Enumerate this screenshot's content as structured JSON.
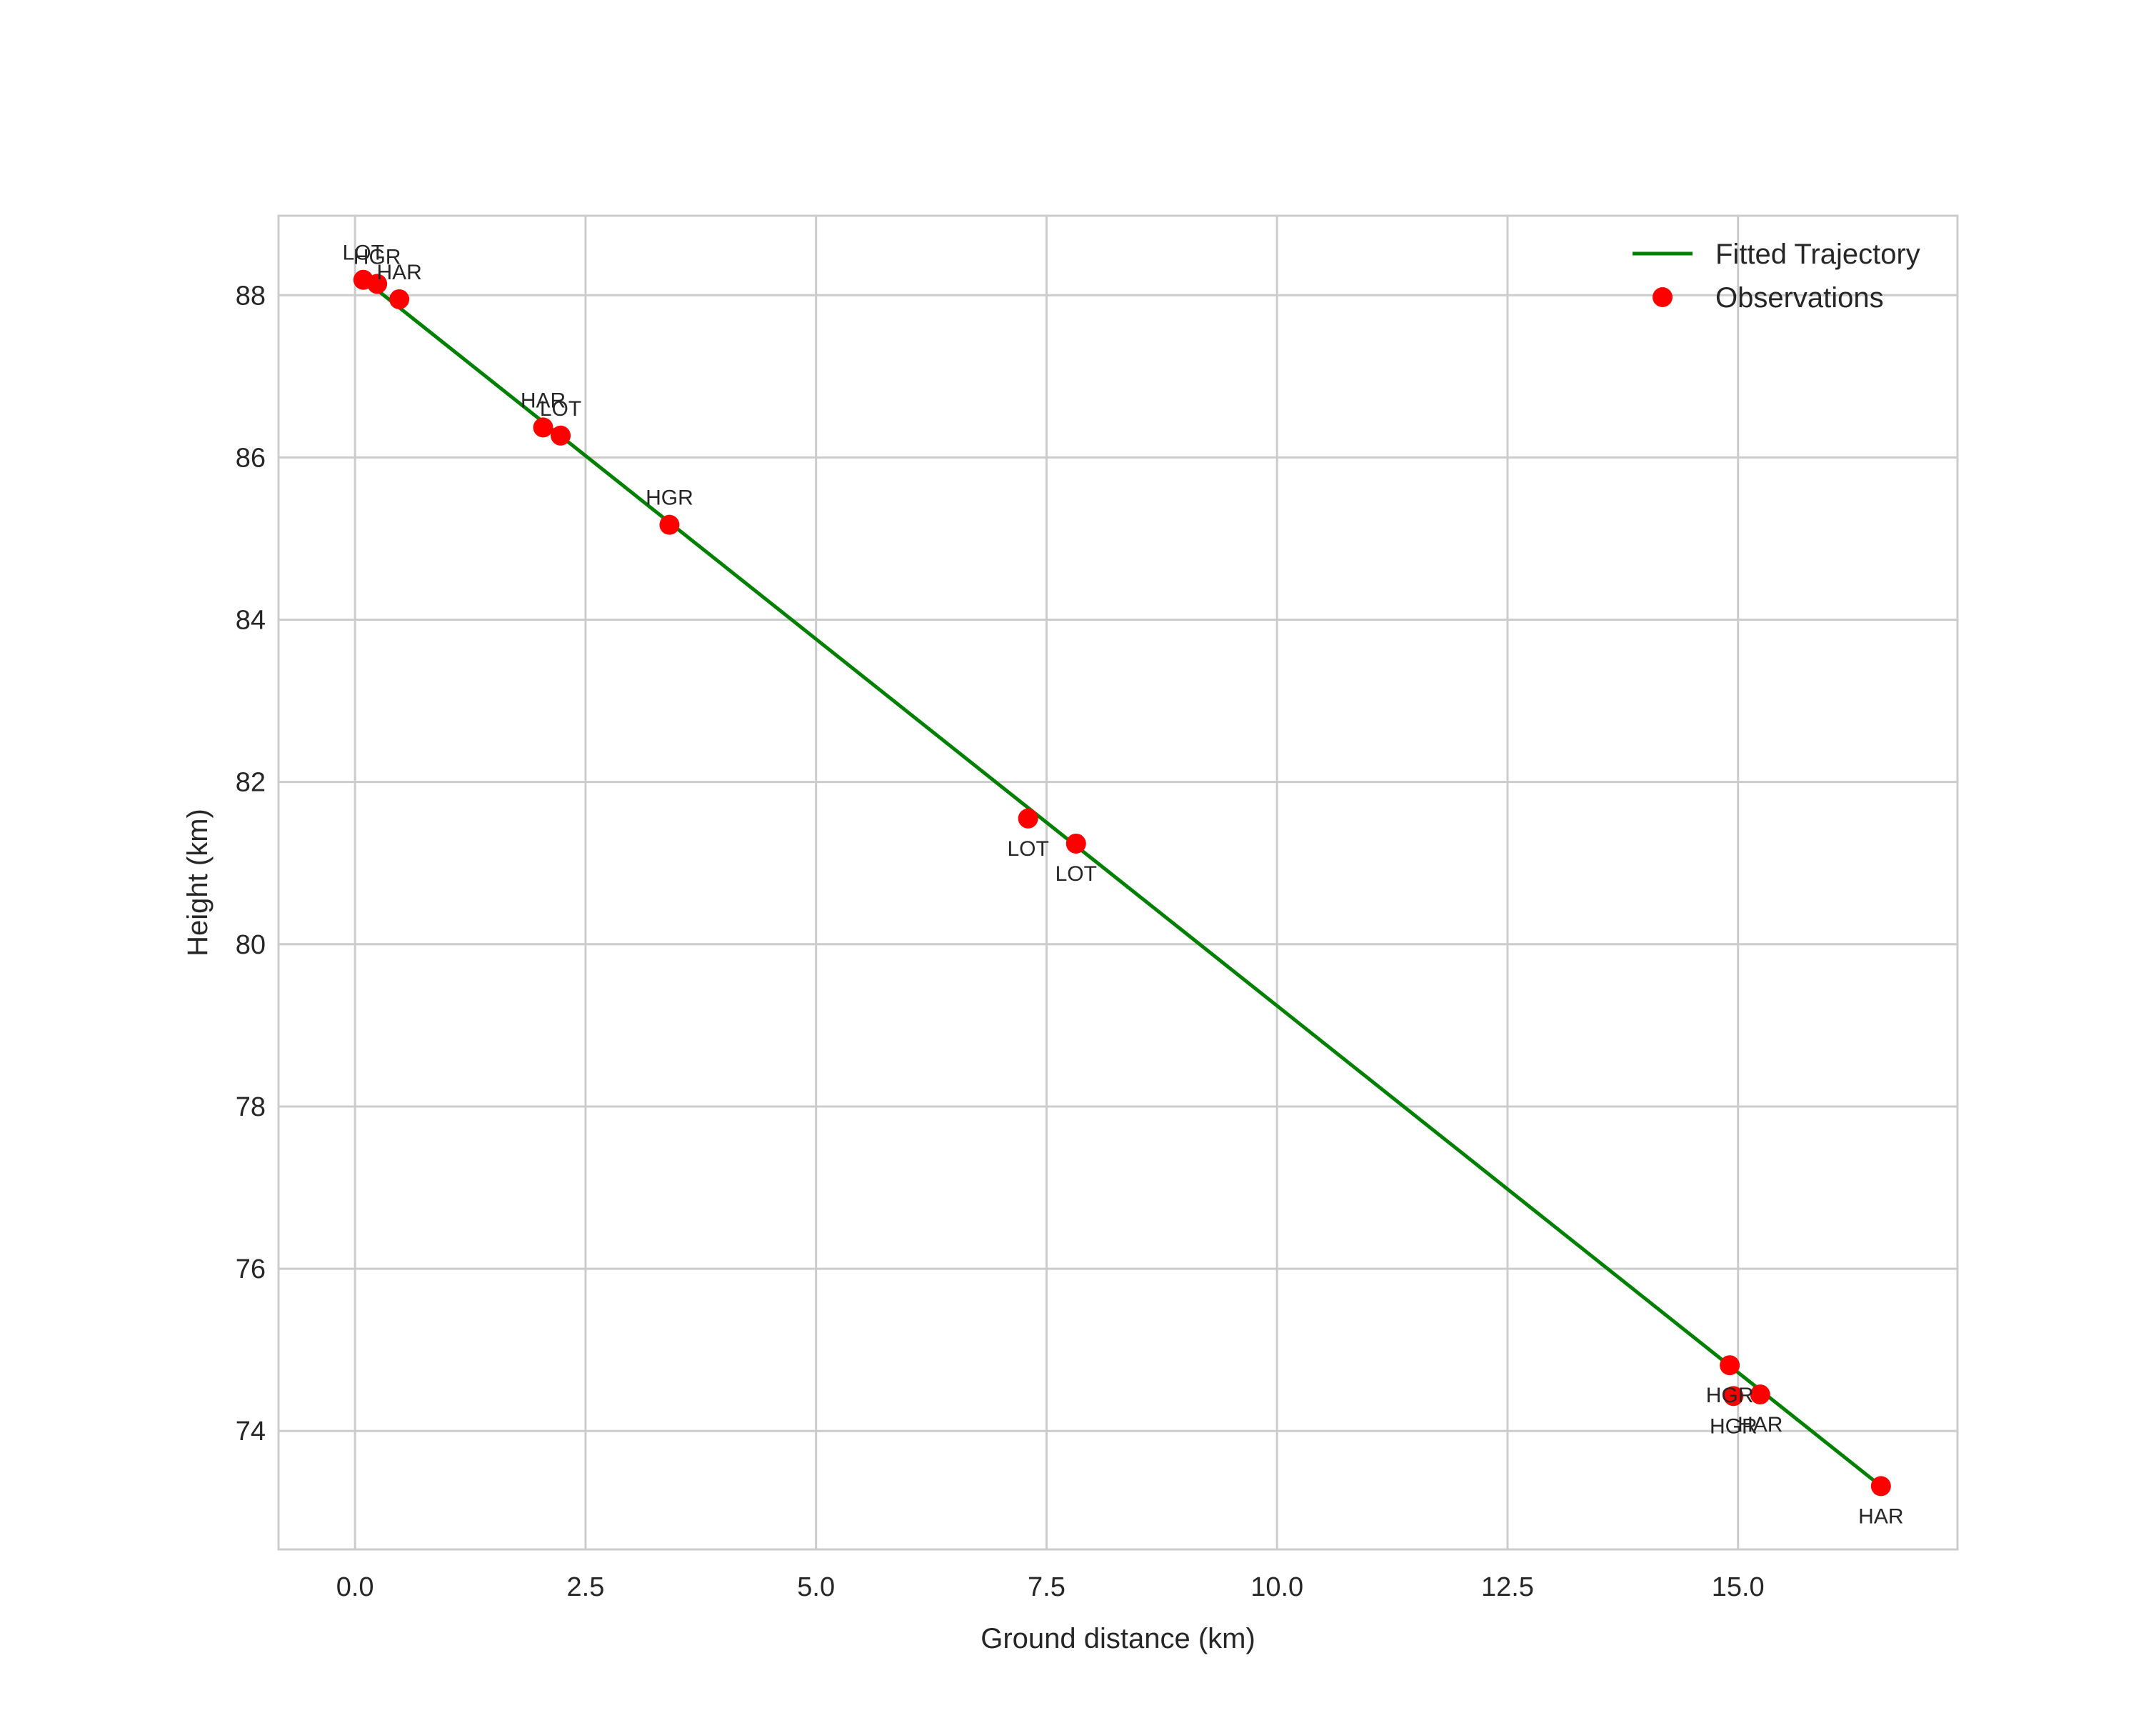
{
  "chart_data": {
    "type": "scatter",
    "title": "",
    "xlabel": "Ground distance (km)",
    "ylabel": "Height (km)",
    "xlim": [
      -0.83,
      17.38
    ],
    "ylim": [
      72.54,
      88.98
    ],
    "grid": true,
    "legend_position": "upper right",
    "xticks": [
      "0.0",
      "2.5",
      "5.0",
      "7.5",
      "10.0",
      "12.5",
      "15.0"
    ],
    "xtick_values": [
      0,
      2.5,
      5,
      7.5,
      10,
      12.5,
      15
    ],
    "yticks": [
      "74",
      "76",
      "78",
      "80",
      "82",
      "84",
      "86",
      "88"
    ],
    "ytick_values": [
      74,
      76,
      78,
      80,
      82,
      84,
      86,
      88
    ],
    "series": [
      {
        "name": "Fitted Trajectory",
        "kind": "line",
        "color": "#008000",
        "x": [
          0.09,
          16.55
        ],
        "y": [
          88.2,
          73.32
        ]
      },
      {
        "name": "Observations",
        "kind": "scatter",
        "color": "#ff0000",
        "points": [
          {
            "station": "LOT",
            "x": 0.09,
            "y": 88.19,
            "label_pos": "above"
          },
          {
            "station": "HGR",
            "x": 0.24,
            "y": 88.14,
            "label_pos": "above"
          },
          {
            "station": "HAR",
            "x": 0.48,
            "y": 87.95,
            "label_pos": "above"
          },
          {
            "station": "HAR",
            "x": 2.04,
            "y": 86.37,
            "label_pos": "above"
          },
          {
            "station": "LOT",
            "x": 2.23,
            "y": 86.27,
            "label_pos": "above"
          },
          {
            "station": "HGR",
            "x": 3.41,
            "y": 85.17,
            "label_pos": "above"
          },
          {
            "station": "LOT",
            "x": 7.3,
            "y": 81.55,
            "label_pos": "below"
          },
          {
            "station": "LOT",
            "x": 7.82,
            "y": 81.24,
            "label_pos": "below"
          },
          {
            "station": "HGR",
            "x": 14.91,
            "y": 74.81,
            "label_pos": "below"
          },
          {
            "station": "HGR",
            "x": 14.95,
            "y": 74.43,
            "label_pos": "below"
          },
          {
            "station": "HAR",
            "x": 15.24,
            "y": 74.45,
            "label_pos": "below"
          },
          {
            "station": "HAR",
            "x": 16.55,
            "y": 73.32,
            "label_pos": "below"
          }
        ]
      }
    ]
  },
  "legend": {
    "items": [
      {
        "label": "Fitted Trajectory",
        "marker": "line",
        "color": "#008000"
      },
      {
        "label": "Observations",
        "marker": "dot",
        "color": "#ff0000"
      }
    ]
  },
  "colors": {
    "grid": "#cccccc",
    "frame": "#cccccc",
    "text": "#262626",
    "line": "#008000",
    "marker": "#ff0000"
  }
}
